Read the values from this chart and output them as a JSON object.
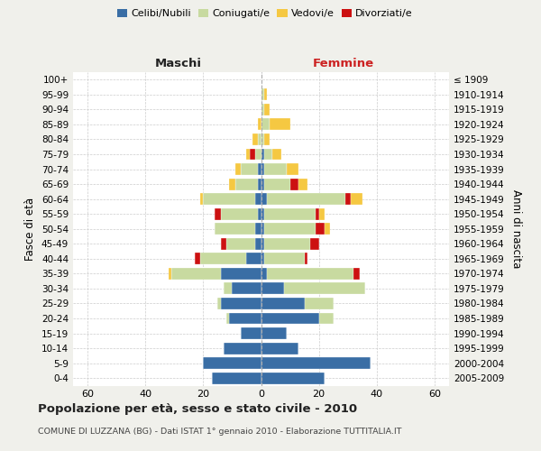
{
  "age_groups": [
    "0-4",
    "5-9",
    "10-14",
    "15-19",
    "20-24",
    "25-29",
    "30-34",
    "35-39",
    "40-44",
    "45-49",
    "50-54",
    "55-59",
    "60-64",
    "65-69",
    "70-74",
    "75-79",
    "80-84",
    "85-89",
    "90-94",
    "95-99",
    "100+"
  ],
  "birth_years": [
    "2005-2009",
    "2000-2004",
    "1995-1999",
    "1990-1994",
    "1985-1989",
    "1980-1984",
    "1975-1979",
    "1970-1974",
    "1965-1969",
    "1960-1964",
    "1955-1959",
    "1950-1954",
    "1945-1949",
    "1940-1944",
    "1935-1939",
    "1930-1934",
    "1925-1929",
    "1920-1924",
    "1915-1919",
    "1910-1914",
    "≤ 1909"
  ],
  "maschi": {
    "celibi": [
      17,
      20,
      13,
      7,
      11,
      14,
      10,
      14,
      5,
      2,
      2,
      1,
      2,
      1,
      1,
      0,
      0,
      0,
      0,
      0,
      0
    ],
    "coniugati": [
      0,
      0,
      0,
      0,
      1,
      1,
      3,
      17,
      16,
      10,
      14,
      13,
      18,
      8,
      6,
      2,
      1,
      0,
      0,
      0,
      0
    ],
    "vedovi": [
      0,
      0,
      0,
      0,
      0,
      0,
      0,
      1,
      0,
      0,
      0,
      0,
      1,
      2,
      2,
      1,
      2,
      1,
      0,
      0,
      0
    ],
    "divorziati": [
      0,
      0,
      0,
      0,
      0,
      0,
      0,
      0,
      2,
      2,
      0,
      2,
      0,
      0,
      0,
      2,
      0,
      0,
      0,
      0,
      0
    ]
  },
  "femmine": {
    "nubili": [
      22,
      38,
      13,
      9,
      20,
      15,
      8,
      2,
      1,
      1,
      1,
      1,
      2,
      1,
      1,
      1,
      0,
      0,
      0,
      0,
      0
    ],
    "coniugate": [
      0,
      0,
      0,
      0,
      5,
      10,
      28,
      30,
      14,
      16,
      18,
      18,
      27,
      9,
      8,
      3,
      1,
      3,
      1,
      1,
      0
    ],
    "vedove": [
      0,
      0,
      0,
      0,
      0,
      0,
      0,
      0,
      0,
      0,
      2,
      2,
      4,
      3,
      4,
      3,
      2,
      7,
      2,
      1,
      0
    ],
    "divorziate": [
      0,
      0,
      0,
      0,
      0,
      0,
      0,
      2,
      1,
      3,
      3,
      1,
      2,
      3,
      0,
      0,
      0,
      0,
      0,
      0,
      0
    ]
  },
  "colors": {
    "celibi_nubili": "#3a6ea5",
    "coniugati": "#c8daa0",
    "vedovi": "#f5c842",
    "divorziati": "#cc1111"
  },
  "xlim": 65,
  "title": "Popolazione per età, sesso e stato civile - 2010",
  "subtitle": "COMUNE DI LUZZANA (BG) - Dati ISTAT 1° gennaio 2010 - Elaborazione TUTTITALIA.IT",
  "ylabel_left": "Fasce di età",
  "ylabel_right": "Anni di nascita",
  "xlabel_maschi": "Maschi",
  "xlabel_femmine": "Femmine",
  "bg_color": "#f0f0eb",
  "plot_bg_color": "#ffffff",
  "grid_color": "#cccccc"
}
